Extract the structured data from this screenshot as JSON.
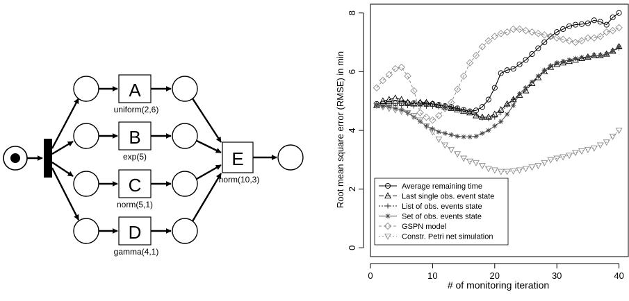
{
  "petri_net": {
    "transitions": [
      {
        "id": "A",
        "label": "A",
        "distribution": "uniform(2,6)"
      },
      {
        "id": "B",
        "label": "B",
        "distribution": "exp(5)"
      },
      {
        "id": "C",
        "label": "C",
        "distribution": "norm(5,1)"
      },
      {
        "id": "D",
        "label": "D",
        "distribution": "gamma(4,1)"
      },
      {
        "id": "E",
        "label": "E",
        "distribution": "norm(10,3)"
      }
    ]
  },
  "chart_data": {
    "type": "line",
    "xlabel": "# of monitoring iteration",
    "ylabel": "Root mean square error (RMSE) in min",
    "xlim": [
      0,
      41.5
    ],
    "ylim": [
      -0.3,
      8.3
    ],
    "xticks": [
      0,
      10,
      20,
      30,
      40
    ],
    "yticks": [
      0,
      2,
      4,
      6,
      8
    ],
    "grid": false,
    "legend_position": "bottom-left",
    "x": [
      1,
      2,
      3,
      4,
      5,
      6,
      7,
      8,
      9,
      10,
      11,
      12,
      13,
      14,
      15,
      16,
      17,
      18,
      19,
      20,
      21,
      22,
      23,
      24,
      25,
      26,
      27,
      28,
      29,
      30,
      31,
      32,
      33,
      34,
      35,
      36,
      37,
      38,
      39,
      40
    ],
    "series": [
      {
        "name": "Average remaining time",
        "marker": "circle",
        "values": [
          4.9,
          4.91,
          4.92,
          4.92,
          4.93,
          4.93,
          4.93,
          4.92,
          4.91,
          4.9,
          4.87,
          4.83,
          4.8,
          4.75,
          4.7,
          4.65,
          4.68,
          4.8,
          5.05,
          5.45,
          5.95,
          6.05,
          6.1,
          6.25,
          6.4,
          6.6,
          6.8,
          7.0,
          7.2,
          7.35,
          7.45,
          7.55,
          7.6,
          7.62,
          7.65,
          7.75,
          7.7,
          7.6,
          7.85,
          8.0
        ]
      },
      {
        "name": "Last single obs. event state",
        "marker": "triangle-up",
        "values": [
          4.85,
          5.0,
          5.05,
          5.1,
          5.05,
          4.95,
          4.9,
          4.95,
          4.95,
          4.9,
          4.85,
          4.8,
          4.75,
          4.7,
          4.65,
          4.6,
          4.5,
          4.45,
          4.45,
          4.55,
          4.7,
          4.9,
          5.05,
          5.2,
          5.35,
          5.6,
          5.8,
          6.0,
          6.15,
          6.25,
          6.3,
          6.35,
          6.4,
          6.45,
          6.5,
          6.55,
          6.55,
          6.6,
          6.7,
          6.85
        ]
      },
      {
        "name": "List of obs. events state",
        "marker": "plus",
        "values": [
          4.85,
          4.85,
          4.85,
          4.85,
          4.84,
          4.84,
          4.83,
          4.83,
          4.82,
          4.82,
          4.8,
          4.78,
          4.76,
          4.74,
          4.7,
          4.65,
          4.55,
          4.42,
          4.4,
          4.45,
          4.6,
          4.85,
          5.05,
          5.25,
          5.45,
          5.65,
          5.85,
          6.05,
          6.2,
          6.3,
          6.35,
          6.4,
          6.45,
          6.48,
          6.5,
          6.55,
          6.55,
          6.6,
          6.7,
          6.8
        ]
      },
      {
        "name": "Set of obs. events state",
        "marker": "asterisk",
        "values": [
          4.85,
          4.82,
          4.8,
          4.75,
          4.7,
          4.6,
          4.45,
          4.3,
          4.15,
          4.05,
          3.95,
          3.9,
          3.85,
          3.8,
          3.78,
          3.78,
          3.8,
          3.9,
          4.0,
          4.15,
          4.3,
          4.55,
          4.85,
          5.25,
          5.45,
          5.65,
          5.85,
          6.05,
          6.2,
          6.3,
          6.35,
          6.4,
          6.45,
          6.48,
          6.5,
          6.55,
          6.55,
          6.6,
          6.7,
          6.85
        ]
      },
      {
        "name": "GSPN model",
        "marker": "diamond",
        "values": [
          5.45,
          5.7,
          5.9,
          6.1,
          6.15,
          5.85,
          5.35,
          4.6,
          4.45,
          4.35,
          4.5,
          4.75,
          4.95,
          5.4,
          5.85,
          6.3,
          6.55,
          6.85,
          7.05,
          7.2,
          7.3,
          7.35,
          7.45,
          7.45,
          7.4,
          7.35,
          7.3,
          7.25,
          7.2,
          7.15,
          7.1,
          7.05,
          7.0,
          7.05,
          7.15,
          7.15,
          7.2,
          7.35,
          7.4,
          7.5
        ]
      },
      {
        "name": "Constr. Petri net simulation",
        "marker": "triangle-down",
        "values": [
          4.85,
          4.8,
          4.75,
          4.7,
          4.65,
          4.6,
          4.5,
          4.35,
          4.15,
          3.95,
          3.7,
          3.5,
          3.35,
          3.2,
          3.05,
          2.95,
          2.9,
          2.8,
          2.7,
          2.65,
          2.6,
          2.6,
          2.62,
          2.65,
          2.7,
          2.75,
          2.8,
          2.9,
          3.0,
          3.05,
          3.1,
          3.15,
          3.25,
          3.3,
          3.35,
          3.4,
          3.5,
          3.6,
          3.8,
          4.0
        ]
      }
    ]
  }
}
